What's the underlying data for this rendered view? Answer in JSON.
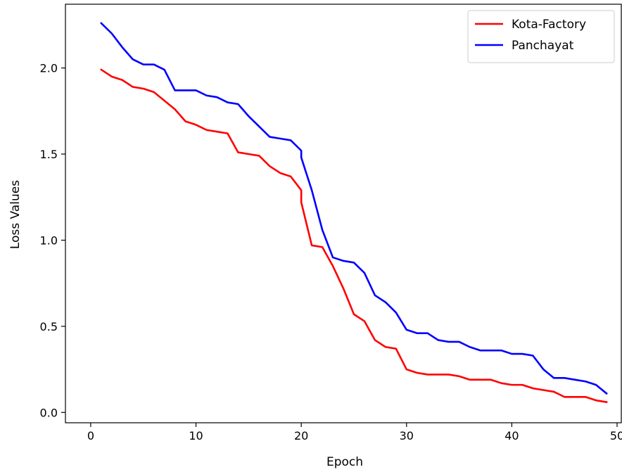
{
  "chart_data": {
    "type": "line",
    "title": "",
    "xlabel": "Epoch",
    "ylabel": "Loss Values",
    "xlim": [
      -2.4,
      50.4
    ],
    "ylim": [
      -0.06,
      2.37
    ],
    "xticks": [
      0,
      10,
      20,
      30,
      40,
      50
    ],
    "xtick_labels": [
      "0",
      "10",
      "20",
      "30",
      "40",
      "50"
    ],
    "yticks": [
      0.0,
      0.5,
      1.0,
      1.5,
      2.0
    ],
    "ytick_labels": [
      "0.0",
      "0.5",
      "1.0",
      "1.5",
      "2.0"
    ],
    "grid": false,
    "legend_position": "upper-right",
    "series": [
      {
        "name": "Kota-Factory",
        "color": "#ff0000",
        "x": [
          1,
          2,
          3,
          4,
          5,
          6,
          7,
          8,
          9,
          10,
          11,
          12,
          13,
          14,
          15,
          16,
          17,
          18,
          19,
          20,
          20,
          21,
          22,
          23,
          24,
          25,
          26,
          27,
          28,
          29,
          30,
          31,
          32,
          33,
          34,
          35,
          36,
          37,
          38,
          39,
          40,
          41,
          42,
          43,
          44,
          45,
          46,
          47,
          48,
          49
        ],
        "y": [
          1.99,
          1.95,
          1.93,
          1.89,
          1.88,
          1.86,
          1.81,
          1.76,
          1.69,
          1.67,
          1.64,
          1.63,
          1.62,
          1.51,
          1.5,
          1.49,
          1.43,
          1.39,
          1.37,
          1.29,
          1.22,
          0.97,
          0.96,
          0.85,
          0.72,
          0.57,
          0.53,
          0.42,
          0.38,
          0.37,
          0.25,
          0.23,
          0.22,
          0.22,
          0.22,
          0.21,
          0.19,
          0.19,
          0.19,
          0.17,
          0.16,
          0.16,
          0.14,
          0.13,
          0.12,
          0.09,
          0.09,
          0.09,
          0.07,
          0.06
        ]
      },
      {
        "name": "Panchayat",
        "color": "#0000ff",
        "x": [
          1,
          2,
          3,
          4,
          5,
          6,
          7,
          8,
          9,
          10,
          11,
          12,
          13,
          14,
          15,
          16,
          17,
          18,
          19,
          20,
          20,
          21,
          22,
          23,
          24,
          25,
          26,
          27,
          28,
          29,
          30,
          31,
          32,
          33,
          34,
          35,
          36,
          37,
          38,
          39,
          40,
          41,
          42,
          43,
          44,
          45,
          46,
          47,
          48,
          49
        ],
        "y": [
          2.26,
          2.2,
          2.12,
          2.05,
          2.02,
          2.02,
          1.99,
          1.87,
          1.87,
          1.87,
          1.84,
          1.83,
          1.8,
          1.79,
          1.72,
          1.66,
          1.6,
          1.59,
          1.58,
          1.52,
          1.48,
          1.29,
          1.06,
          0.9,
          0.88,
          0.87,
          0.81,
          0.68,
          0.64,
          0.58,
          0.48,
          0.46,
          0.46,
          0.42,
          0.41,
          0.41,
          0.38,
          0.36,
          0.36,
          0.36,
          0.34,
          0.34,
          0.33,
          0.25,
          0.2,
          0.2,
          0.19,
          0.18,
          0.16,
          0.11
        ]
      }
    ]
  }
}
